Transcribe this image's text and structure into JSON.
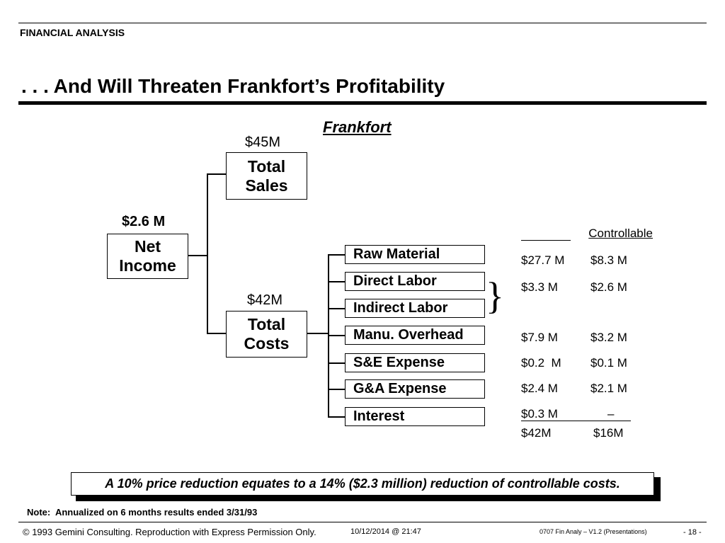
{
  "header": {
    "section": "FINANCIAL ANALYSIS",
    "title": ". . . And Will Threaten Frankfort’s Profitability"
  },
  "diagram": {
    "heading": "Frankfort",
    "net_income": {
      "value": "$2.6 M",
      "label_line1": "Net",
      "label_line2": "Income"
    },
    "total_sales": {
      "value": "$45M",
      "label_line1": "Total",
      "label_line2": "Sales"
    },
    "total_costs": {
      "value": "$42M",
      "label_line1": "Total",
      "label_line2": "Costs"
    },
    "cost_items": [
      "Raw Material",
      "Direct Labor",
      "Indirect Labor",
      "Manu. Overhead",
      "S&E Expense",
      "G&A Expense",
      "Interest"
    ],
    "brace": "}",
    "controllable_header": "Controllable",
    "values": [
      {
        "total": "$27.7 M",
        "controllable": "$8.3 M"
      },
      {
        "total": "$3.3 M",
        "controllable": "$2.6 M"
      },
      {
        "total": "$7.9 M",
        "controllable": "$3.2 M"
      },
      {
        "total": "$0.2  M",
        "controllable": "$0.1 M"
      },
      {
        "total": "$2.4 M",
        "controllable": "$2.1 M"
      },
      {
        "total": "$0.3 M",
        "controllable": "–"
      }
    ],
    "totals": {
      "total": "$42M",
      "controllable": "$16M"
    }
  },
  "callout": "A 10% price reduction equates to a 14% ($2.3 million) reduction of controllable costs.",
  "note": "Note:  Annualized on 6 months results ended 3/31/93",
  "footer": {
    "copyright": "© 1993 Gemini Consulting. Reproduction with Express Permission Only.",
    "date": "10/12/2014 @ 21:47",
    "doc": "0707 Fin Analy – V1.2 (Presentations)",
    "page": "- 18 -"
  }
}
